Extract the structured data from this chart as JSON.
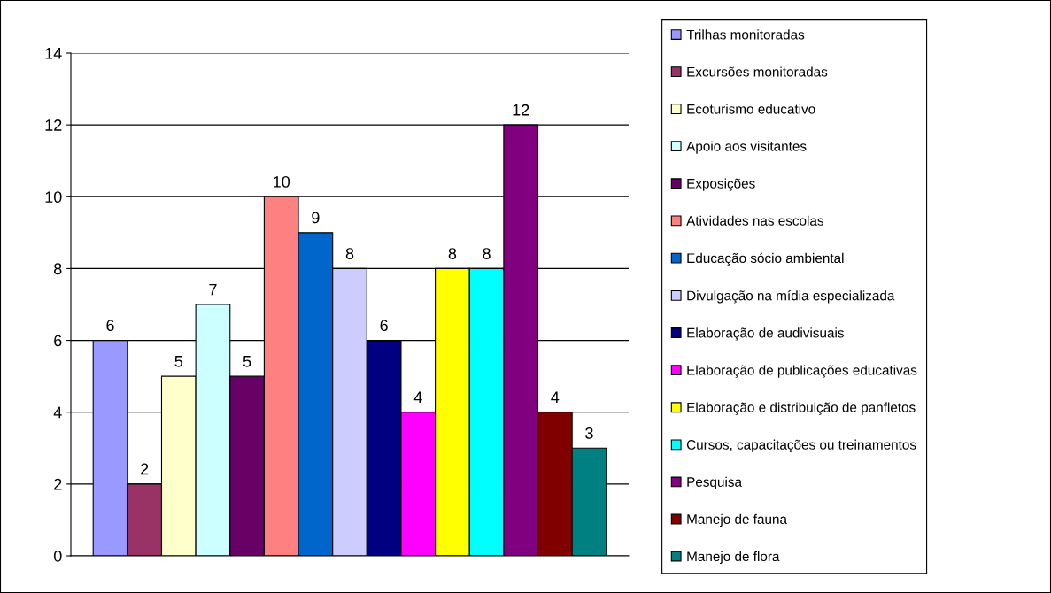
{
  "chart_data": {
    "type": "bar",
    "categories": [
      null
    ],
    "ylim": [
      0,
      14
    ],
    "yticks": [
      0,
      2,
      4,
      6,
      8,
      10,
      12,
      14
    ],
    "grid": "y",
    "legend": "right",
    "data_labels": true,
    "series": [
      {
        "name": "Trilhas monitoradas",
        "color": "#9999ff",
        "values": [
          6
        ]
      },
      {
        "name": "Excursões monitoradas",
        "color": "#993366",
        "values": [
          2
        ]
      },
      {
        "name": "Ecoturismo educativo",
        "color": "#ffffcc",
        "values": [
          5
        ]
      },
      {
        "name": "Apoio aos visitantes",
        "color": "#ccffff",
        "values": [
          7
        ]
      },
      {
        "name": "Exposições",
        "color": "#660066",
        "values": [
          5
        ]
      },
      {
        "name": "Atividades nas escolas",
        "color": "#ff8080",
        "values": [
          10
        ]
      },
      {
        "name": "Educação sócio ambiental",
        "color": "#0066cc",
        "values": [
          9
        ]
      },
      {
        "name": "Divulgação na mídia especializada",
        "color": "#ccccff",
        "values": [
          8
        ]
      },
      {
        "name": "Elaboração de audivisuais",
        "color": "#000080",
        "values": [
          6
        ]
      },
      {
        "name": "Elaboração de publicações educativas",
        "color": "#ff00ff",
        "values": [
          4
        ]
      },
      {
        "name": "Elaboração e distribuição de panfletos",
        "color": "#ffff00",
        "values": [
          8
        ]
      },
      {
        "name": "Cursos, capacitações ou treinamentos",
        "color": "#00ffff",
        "values": [
          8
        ]
      },
      {
        "name": "Pesquisa",
        "color": "#800080",
        "values": [
          12
        ]
      },
      {
        "name": "Manejo de fauna",
        "color": "#800000",
        "values": [
          4
        ]
      },
      {
        "name": "Manejo de flora",
        "color": "#008080",
        "values": [
          3
        ]
      }
    ]
  }
}
